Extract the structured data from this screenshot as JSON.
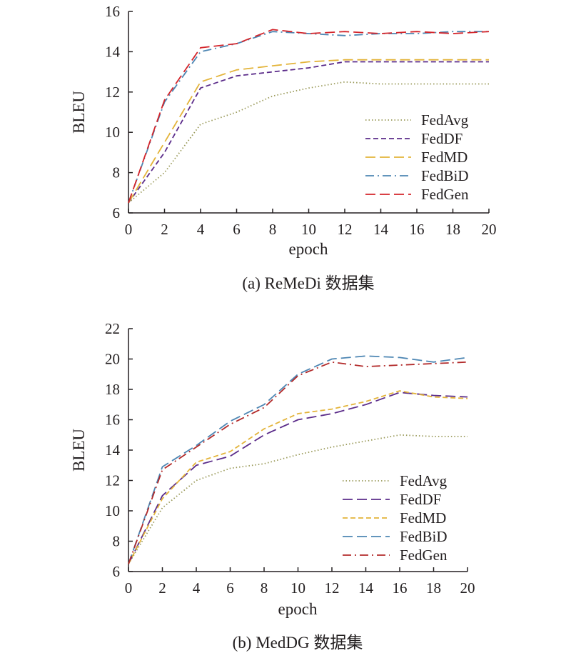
{
  "chart_data": [
    {
      "type": "line",
      "caption": "(a) ReMeDi 数据集",
      "xlabel": "epoch",
      "ylabel": "BLEU",
      "xlim": [
        0,
        20
      ],
      "ylim": [
        6,
        16
      ],
      "xticks": [
        0,
        2,
        4,
        6,
        8,
        10,
        12,
        14,
        16,
        18,
        20
      ],
      "yticks": [
        6,
        8,
        10,
        12,
        14,
        16
      ],
      "legend_position": "right",
      "series": [
        {
          "name": "FedAvg",
          "color": "#9a9a5a",
          "style": "dotted",
          "x": [
            0,
            2,
            4,
            6,
            8,
            10,
            12,
            14,
            16,
            18,
            20
          ],
          "y": [
            6.5,
            8.0,
            10.4,
            11.0,
            11.8,
            12.2,
            12.5,
            12.4,
            12.4,
            12.4,
            12.4
          ]
        },
        {
          "name": "FedDF",
          "color": "#5b2c8a",
          "style": "dashed",
          "x": [
            0,
            2,
            4,
            6,
            8,
            10,
            12,
            14,
            16,
            18,
            20
          ],
          "y": [
            6.5,
            9.0,
            12.2,
            12.8,
            13.0,
            13.2,
            13.5,
            13.5,
            13.5,
            13.5,
            13.5
          ]
        },
        {
          "name": "FedMD",
          "color": "#e3b43a",
          "style": "long-dashed",
          "x": [
            0,
            2,
            4,
            6,
            8,
            10,
            12,
            14,
            16,
            18,
            20
          ],
          "y": [
            6.5,
            9.5,
            12.5,
            13.1,
            13.3,
            13.5,
            13.6,
            13.6,
            13.6,
            13.6,
            13.6
          ]
        },
        {
          "name": "FedBiD",
          "color": "#4d86b3",
          "style": "dash-dot",
          "x": [
            0,
            2,
            4,
            6,
            8,
            10,
            12,
            14,
            16,
            18,
            20
          ],
          "y": [
            6.5,
            11.5,
            14.0,
            14.4,
            15.0,
            14.9,
            14.8,
            14.9,
            14.9,
            15.0,
            15.0
          ]
        },
        {
          "name": "FedGen",
          "color": "#d4252b",
          "style": "long-dashed",
          "x": [
            0,
            2,
            4,
            6,
            8,
            10,
            12,
            14,
            16,
            18,
            20
          ],
          "y": [
            6.5,
            11.6,
            14.2,
            14.4,
            15.1,
            14.9,
            15.0,
            14.9,
            15.0,
            14.9,
            15.0
          ]
        }
      ]
    },
    {
      "type": "line",
      "caption": "(b) MedDG 数据集",
      "xlabel": "epoch",
      "ylabel": "BLEU",
      "xlim": [
        0,
        20
      ],
      "ylim": [
        6,
        22
      ],
      "xticks": [
        0,
        2,
        4,
        6,
        8,
        10,
        12,
        14,
        16,
        18,
        20
      ],
      "yticks": [
        6,
        8,
        10,
        12,
        14,
        16,
        18,
        20,
        22
      ],
      "legend_position": "right",
      "series": [
        {
          "name": "FedAvg",
          "color": "#9a9a5a",
          "style": "dotted",
          "x": [
            0,
            2,
            4,
            6,
            8,
            10,
            12,
            14,
            16,
            18,
            20
          ],
          "y": [
            6.5,
            10.2,
            12.0,
            12.8,
            13.1,
            13.7,
            14.2,
            14.6,
            15.0,
            14.9,
            14.9
          ]
        },
        {
          "name": "FedDF",
          "color": "#5b2c8a",
          "style": "long-dashed",
          "x": [
            0,
            2,
            4,
            6,
            8,
            10,
            12,
            14,
            16,
            18,
            20
          ],
          "y": [
            6.5,
            11.0,
            13.0,
            13.6,
            15.0,
            16.0,
            16.4,
            17.0,
            17.8,
            17.6,
            17.5
          ]
        },
        {
          "name": "FedMD",
          "color": "#e3b43a",
          "style": "dashed",
          "x": [
            0,
            2,
            4,
            6,
            8,
            10,
            12,
            14,
            16,
            18,
            20
          ],
          "y": [
            6.5,
            10.8,
            13.2,
            13.9,
            15.4,
            16.4,
            16.7,
            17.2,
            17.9,
            17.5,
            17.4
          ]
        },
        {
          "name": "FedBiD",
          "color": "#4d86b3",
          "style": "long-dashed",
          "x": [
            0,
            2,
            4,
            6,
            8,
            10,
            12,
            14,
            16,
            18,
            20
          ],
          "y": [
            6.5,
            12.9,
            14.3,
            15.9,
            17.0,
            19.0,
            20.0,
            20.2,
            20.1,
            19.8,
            20.1
          ]
        },
        {
          "name": "FedGen",
          "color": "#b22a2a",
          "style": "dash-dot",
          "x": [
            0,
            2,
            4,
            6,
            8,
            10,
            12,
            14,
            16,
            18,
            20
          ],
          "y": [
            6.5,
            12.7,
            14.2,
            15.7,
            16.8,
            18.9,
            19.8,
            19.5,
            19.6,
            19.7,
            19.8
          ]
        }
      ]
    }
  ]
}
